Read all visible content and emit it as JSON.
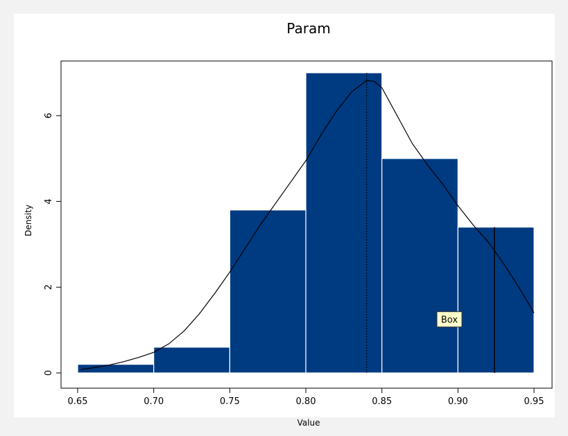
{
  "chart_data": {
    "type": "bar",
    "title": "Param",
    "xlabel": "Value",
    "ylabel": "Density",
    "xlim": [
      0.65,
      0.95
    ],
    "ylim": [
      -0.2,
      7.2
    ],
    "x_ticks": [
      "0.65",
      "0.70",
      "0.75",
      "0.80",
      "0.85",
      "0.90",
      "0.95"
    ],
    "y_ticks": [
      "0",
      "2",
      "4",
      "6"
    ],
    "bins": [
      {
        "x0": 0.65,
        "x1": 0.7,
        "density": 0.2
      },
      {
        "x0": 0.7,
        "x1": 0.75,
        "density": 0.6
      },
      {
        "x0": 0.75,
        "x1": 0.8,
        "density": 3.8
      },
      {
        "x0": 0.8,
        "x1": 0.85,
        "density": 7.0
      },
      {
        "x0": 0.85,
        "x1": 0.9,
        "density": 5.0
      },
      {
        "x0": 0.9,
        "x1": 0.95,
        "density": 3.4
      }
    ],
    "density_curve": {
      "x": [
        0.652,
        0.66,
        0.67,
        0.68,
        0.69,
        0.7,
        0.71,
        0.72,
        0.73,
        0.74,
        0.75,
        0.76,
        0.77,
        0.78,
        0.79,
        0.8,
        0.81,
        0.82,
        0.83,
        0.84,
        0.845,
        0.85,
        0.86,
        0.87,
        0.88,
        0.89,
        0.9,
        0.91,
        0.92,
        0.93,
        0.94,
        0.95
      ],
      "y": [
        0.08,
        0.12,
        0.18,
        0.26,
        0.36,
        0.48,
        0.68,
        0.98,
        1.38,
        1.85,
        2.35,
        2.9,
        3.45,
        3.95,
        4.45,
        4.95,
        5.55,
        6.1,
        6.55,
        6.82,
        6.8,
        6.65,
        6.0,
        5.35,
        4.85,
        4.4,
        3.9,
        3.45,
        3.05,
        2.55,
        2.0,
        1.4
      ]
    },
    "reference_lines": [
      {
        "x": 0.84,
        "style": "dotted"
      },
      {
        "x": 0.924,
        "style": "solid"
      }
    ],
    "annotation": {
      "text": "Box",
      "x": 0.893,
      "y": 1.25
    },
    "colors": {
      "bar": "#003a80",
      "bar_edge": "#ffffff",
      "curve": "#000000",
      "annotation_bg": "#ffffcc"
    },
    "grid": false
  }
}
